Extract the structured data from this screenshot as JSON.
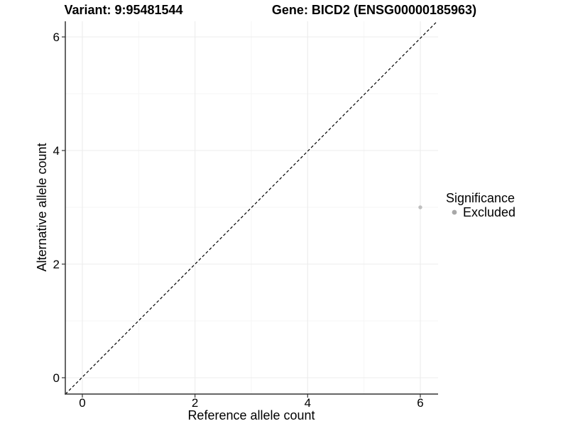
{
  "colors": {
    "background": "#ffffff",
    "axis_line": "#333333",
    "tick_mark": "#333333",
    "text": "#000000",
    "major_grid": "#ececec",
    "minor_grid": "#f5f5f5",
    "identity_line": "#000000",
    "point": "#bfbfbf",
    "legend_key": "#a8a8a8"
  },
  "chart_data": {
    "type": "scatter",
    "titles": [
      {
        "name": "variant",
        "text": "Variant: 9:95481544"
      },
      {
        "name": "gene",
        "text": "Gene: BICD2 (ENSG00000185963)"
      }
    ],
    "xlabel": "Reference allele count",
    "ylabel": "Alternative allele count",
    "xlim": [
      -0.3,
      6.3
    ],
    "ylim": [
      -0.3,
      6.3
    ],
    "x_major_ticks": [
      0,
      2,
      4,
      6
    ],
    "y_major_ticks": [
      0,
      2,
      4,
      6
    ],
    "x_minor_gridlines": [
      1,
      3,
      5
    ],
    "y_minor_gridlines": [
      1,
      3,
      5
    ],
    "grid": true,
    "identity_line": {
      "style": "dashed",
      "equation": "y = x",
      "from": [
        -0.3,
        -0.3
      ],
      "to": [
        6.3,
        6.3
      ]
    },
    "series": [
      {
        "name": "Excluded",
        "points": [
          {
            "x": 6,
            "y": 3
          }
        ]
      }
    ],
    "legend": {
      "title": "Significance",
      "position": "right",
      "entries": [
        {
          "label": "Excluded",
          "color": "#a8a8a8"
        }
      ]
    }
  }
}
